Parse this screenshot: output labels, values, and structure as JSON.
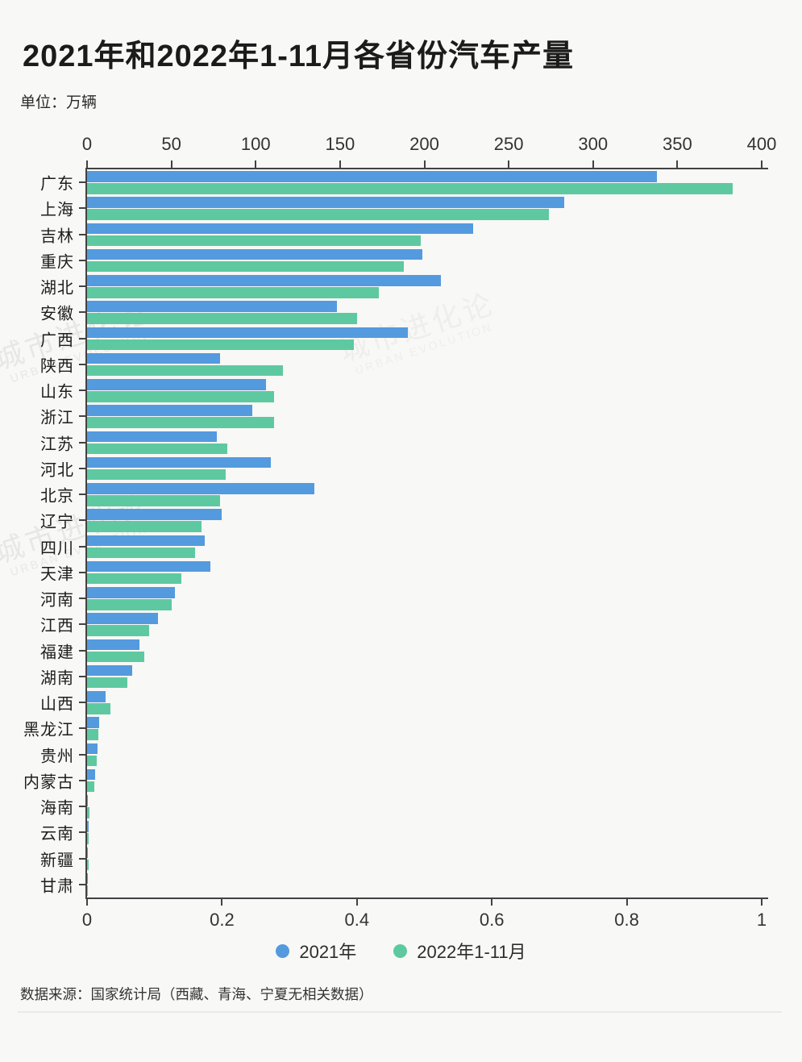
{
  "header": {
    "title": "2021年和2022年1-11月各省份汽车产量",
    "unit": "单位：万辆"
  },
  "chart_data": {
    "type": "bar",
    "orientation": "horizontal",
    "title": "2021年和2022年1-11月各省份汽车产量",
    "unit": "万辆",
    "categories": [
      "广东",
      "上海",
      "吉林",
      "重庆",
      "湖北",
      "安徽",
      "广西",
      "陕西",
      "山东",
      "浙江",
      "江苏",
      "河北",
      "北京",
      "辽宁",
      "四川",
      "天津",
      "河南",
      "江西",
      "福建",
      "湖南",
      "山西",
      "黑龙江",
      "贵州",
      "内蒙古",
      "海南",
      "云南",
      "新疆",
      "甘肃"
    ],
    "series": [
      {
        "name": "2021年",
        "color": "#549ade",
        "values": [
          338,
          283,
          229,
          199,
          210,
          148,
          190,
          79,
          106,
          98,
          77,
          109,
          135,
          80,
          70,
          73,
          52,
          42,
          31,
          27,
          11,
          7,
          6,
          5,
          0.6,
          1,
          0.6,
          0.1
        ]
      },
      {
        "name": "2022年1-11月",
        "color": "#5ec9a0",
        "values": [
          383,
          274,
          198,
          188,
          173,
          160,
          158,
          116,
          111,
          111,
          83,
          82,
          79,
          68,
          64,
          56,
          50,
          37,
          34,
          24,
          14,
          6.5,
          5.5,
          4.5,
          1.5,
          1,
          1,
          0.1
        ]
      }
    ],
    "top_axis": {
      "ticks": [
        "0",
        "50",
        "100",
        "150",
        "200",
        "250",
        "300",
        "350",
        "400"
      ],
      "min": 0,
      "max": 400
    },
    "bottom_axis": {
      "ticks": [
        "0",
        "0.2",
        "0.4",
        "0.6",
        "0.8",
        "1"
      ],
      "min": 0,
      "max": 1
    },
    "grid": false,
    "legend_position": "bottom"
  },
  "legend": {
    "items": [
      {
        "label": "2021年",
        "color": "#549ade"
      },
      {
        "label": "2022年1-11月",
        "color": "#5ec9a0"
      }
    ]
  },
  "footer": {
    "source": "数据来源：国家统计局（西藏、青海、宁夏无相关数据）"
  },
  "watermark": {
    "cn": "城市进化论",
    "en": "URBAN EVOLUTION"
  }
}
